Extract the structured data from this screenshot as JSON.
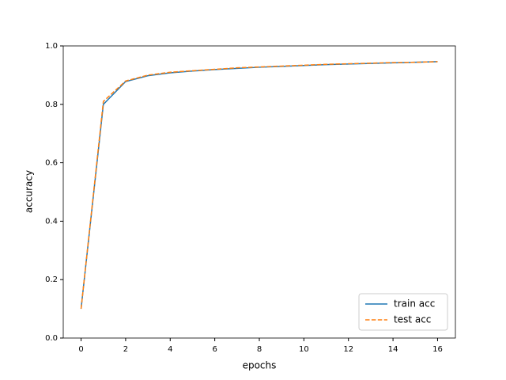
{
  "chart_data": {
    "type": "line",
    "xlabel": "epochs",
    "ylabel": "accuracy",
    "x": [
      0,
      1,
      2,
      3,
      4,
      5,
      6,
      7,
      8,
      9,
      10,
      11,
      12,
      13,
      14,
      15,
      16
    ],
    "series": [
      {
        "name": "train acc",
        "color": "#1f77b4",
        "dash": false,
        "values": [
          0.1,
          0.8,
          0.878,
          0.898,
          0.908,
          0.914,
          0.919,
          0.923,
          0.927,
          0.93,
          0.933,
          0.936,
          0.938,
          0.94,
          0.942,
          0.944,
          0.946
        ]
      },
      {
        "name": "test acc",
        "color": "#ff7f0e",
        "dash": true,
        "values": [
          0.1,
          0.81,
          0.88,
          0.9,
          0.91,
          0.915,
          0.92,
          0.925,
          0.928,
          0.931,
          0.934,
          0.937,
          0.939,
          0.941,
          0.943,
          0.944,
          0.946
        ]
      }
    ],
    "xlim": [
      -0.8,
      16.8
    ],
    "xticks": [
      0,
      2,
      4,
      6,
      8,
      10,
      12,
      14,
      16
    ],
    "ylim": [
      0,
      1
    ],
    "yticks": [
      {
        "value": 0,
        "label": "0.0"
      },
      {
        "value": 0.2,
        "label": "0.2"
      },
      {
        "value": 0.4,
        "label": "0.4"
      },
      {
        "value": 0.6,
        "label": "0.6"
      },
      {
        "value": 0.8,
        "label": "0.8"
      },
      {
        "value": 1,
        "label": "1.0"
      }
    ],
    "legend": "lower right"
  }
}
